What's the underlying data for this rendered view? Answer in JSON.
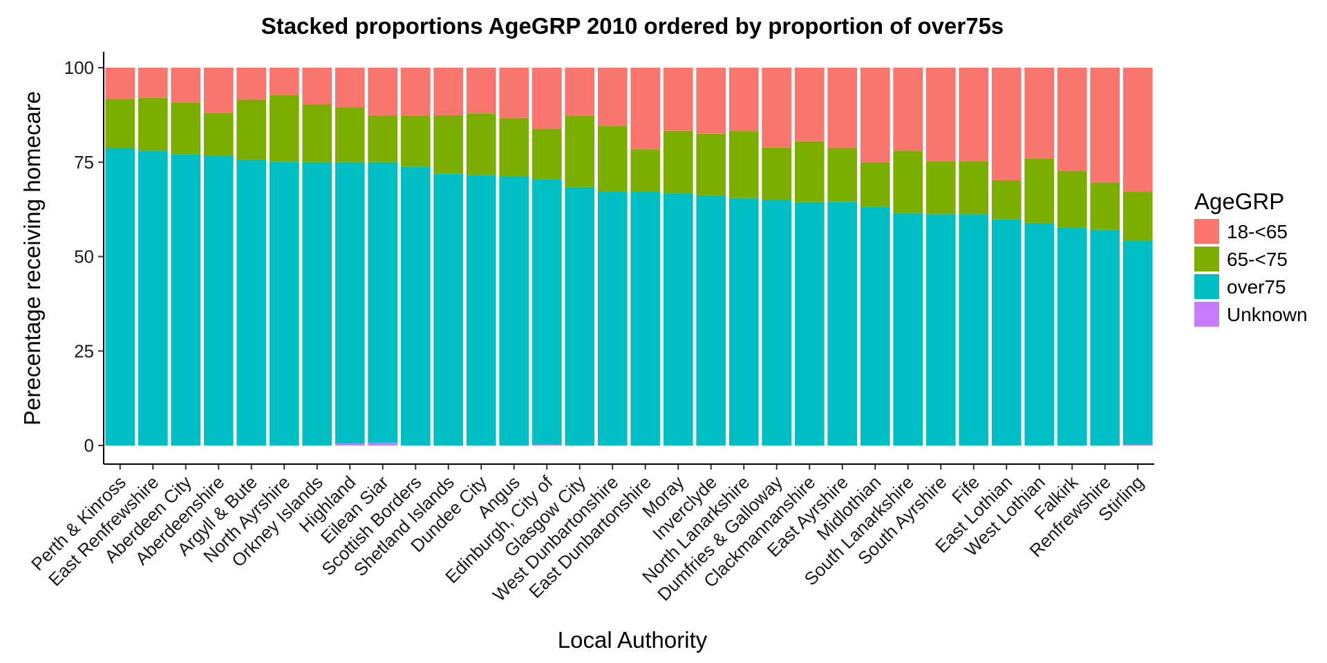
{
  "chart_data": {
    "type": "bar",
    "stacked": true,
    "title": "Stacked proportions AgeGRP 2010 ordered by proportion of over75s",
    "xlabel": "Local Authority",
    "ylabel": "Perecentage receiving homecare",
    "ylim": [
      0,
      100
    ],
    "yticks": [
      0,
      25,
      50,
      75,
      100
    ],
    "grid": false,
    "legend": {
      "title": "AgeGRP",
      "position": "right"
    },
    "categories": [
      "Perth & Kinross",
      "East Renfrewshire",
      "Aberdeen City",
      "Aberdeenshire",
      "Argyll & Bute",
      "North Ayrshire",
      "Orkney Islands",
      "Highland",
      "Eilean Siar",
      "Scottish Borders",
      "Shetland Islands",
      "Dundee City",
      "Angus",
      "Edinburgh, City of",
      "Glasgow City",
      "West Dunbartonshire",
      "East Dunbartonshire",
      "Moray",
      "Inverclyde",
      "North Lanarkshire",
      "Dumfries & Galloway",
      "Clackmannanshire",
      "East Ayrshire",
      "Midlothian",
      "South Lanarkshire",
      "South Ayrshire",
      "Fife",
      "East Lothian",
      "West Lothian",
      "Falkirk",
      "Renfrewshire",
      "Stirling"
    ],
    "stack_order": [
      "Unknown",
      "over75",
      "65-<75",
      "18-<65"
    ],
    "series": [
      {
        "name": "18-<65",
        "color": "#F8766D",
        "values": [
          8.3,
          8.0,
          9.2,
          12.0,
          8.5,
          7.3,
          9.7,
          10.5,
          12.7,
          12.8,
          12.6,
          12.1,
          13.3,
          16.2,
          12.8,
          15.4,
          21.6,
          16.8,
          17.5,
          16.7,
          21.2,
          19.5,
          21.3,
          25.0,
          22.0,
          24.8,
          24.8,
          29.8,
          24.0,
          27.3,
          30.4,
          32.8
        ]
      },
      {
        "name": "65-<75",
        "color": "#7CAE00",
        "values": [
          13.0,
          14.0,
          13.8,
          11.4,
          15.8,
          17.6,
          15.3,
          14.5,
          12.3,
          13.5,
          15.5,
          16.4,
          15.5,
          13.4,
          18.8,
          17.4,
          11.3,
          16.5,
          16.3,
          17.8,
          13.9,
          16.1,
          14.2,
          11.8,
          16.5,
          14.0,
          14.0,
          10.3,
          17.1,
          15.0,
          12.5,
          13.0
        ]
      },
      {
        "name": "over75",
        "color": "#00BFC4",
        "values": [
          78.7,
          78.0,
          77.0,
          76.6,
          75.7,
          75.1,
          75.0,
          74.5,
          74.3,
          73.7,
          71.9,
          71.5,
          71.2,
          70.2,
          68.4,
          67.2,
          67.1,
          66.7,
          66.2,
          65.5,
          64.9,
          64.4,
          64.5,
          63.2,
          61.5,
          61.2,
          61.2,
          59.9,
          58.9,
          57.7,
          57.1,
          54.0
        ]
      },
      {
        "name": "Unknown",
        "color": "#C77CFF",
        "values": [
          0,
          0,
          0,
          0,
          0,
          0,
          0,
          0.5,
          0.7,
          0,
          0,
          0,
          0,
          0.2,
          0,
          0,
          0,
          0,
          0,
          0,
          0,
          0,
          0,
          0,
          0,
          0,
          0,
          0,
          0,
          0,
          0,
          0.2
        ]
      }
    ]
  }
}
